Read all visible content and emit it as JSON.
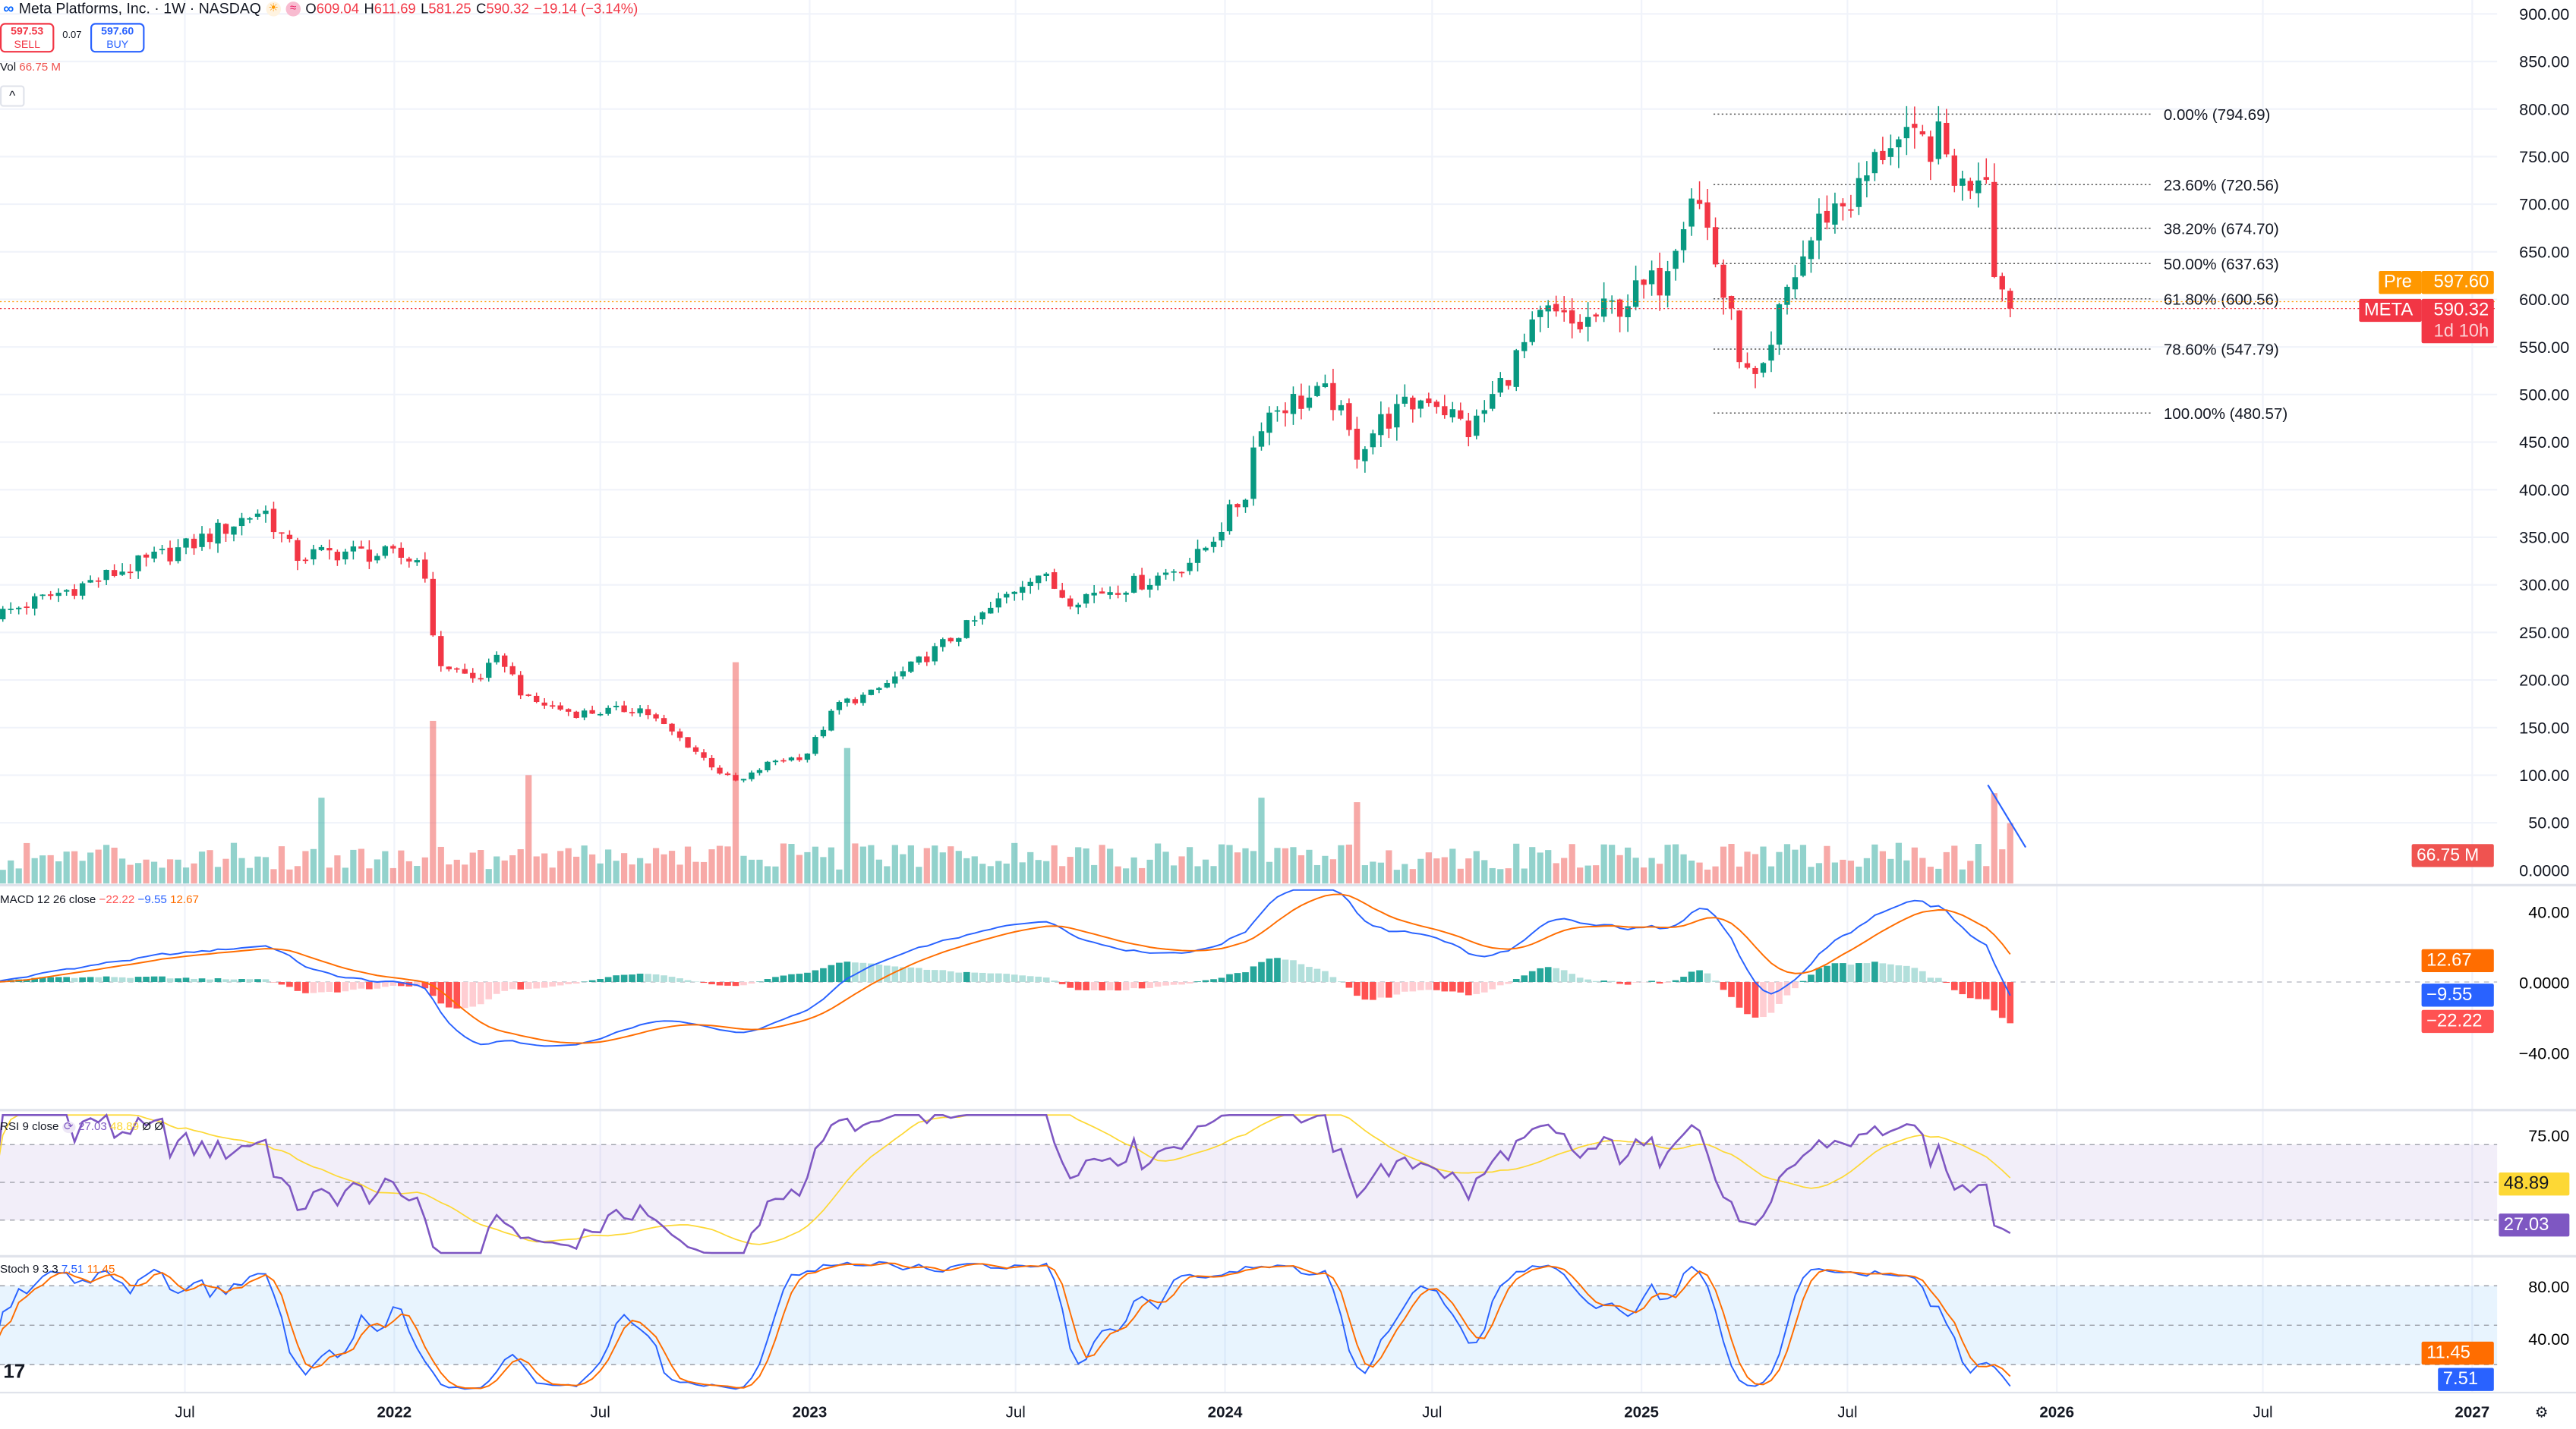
{
  "header": {
    "symbol_title": "Meta Platforms, Inc. · 1W · NASDAQ",
    "ohlc": {
      "o_label": "O",
      "o": "609.04",
      "h_label": "H",
      "h": "611.69",
      "l_label": "L",
      "l": "581.25",
      "c_label": "C",
      "c": "590.32",
      "change": "−19.14 (−3.14%)"
    },
    "sell_price": "597.53",
    "sell_label": "SELL",
    "spread": "0.07",
    "buy_price": "597.60",
    "buy_label": "BUY",
    "vol_label": "Vol",
    "vol_value": "66.75 M",
    "collapse_icon": "^"
  },
  "price_axis": [
    "900.00",
    "850.00",
    "800.00",
    "750.00",
    "700.00",
    "650.00",
    "600.00",
    "550.00",
    "500.00",
    "450.00",
    "400.00",
    "350.00",
    "300.00",
    "250.00",
    "200.00",
    "150.00",
    "100.00",
    "50.00",
    "0.0000"
  ],
  "price_axis_values": [
    900,
    850,
    800,
    750,
    700,
    650,
    600,
    550,
    500,
    450,
    400,
    350,
    300,
    250,
    200,
    150,
    100,
    50,
    0
  ],
  "tags": {
    "pre_label": "Pre",
    "pre_price": "597.60",
    "sym_label": "META",
    "last_price": "590.32",
    "countdown": "1d 10h",
    "volume": "66.75 M",
    "macd_signal": "12.67",
    "macd_line": "−9.55",
    "macd_hist": "−22.22",
    "rsi_ma": "48.89",
    "rsi": "27.03",
    "stoch_d": "11.45",
    "stoch_k": "7.51"
  },
  "fib": [
    {
      "label": "0.00% (794.69)",
      "price": 794.69
    },
    {
      "label": "23.60% (720.56)",
      "price": 720.56
    },
    {
      "label": "38.20% (674.70)",
      "price": 674.7
    },
    {
      "label": "50.00% (637.63)",
      "price": 637.63
    },
    {
      "label": "61.80% (600.56)",
      "price": 600.56
    },
    {
      "label": "78.60% (547.79)",
      "price": 547.79
    },
    {
      "label": "100.00% (480.57)",
      "price": 480.57
    }
  ],
  "macd": {
    "title": "MACD 12 26 close",
    "hist": "−22.22",
    "macd": "−9.55",
    "signal": "12.67",
    "axis": [
      "40.00",
      "0.0000",
      "−40.00"
    ]
  },
  "rsi": {
    "title": "RSI 9 close",
    "value": "27.03",
    "ma": "48.89",
    "extra1": "Ø",
    "extra2": "Ø",
    "axis": [
      "75.00"
    ]
  },
  "stoch": {
    "title": "Stoch 9 3 3",
    "k": "7.51",
    "d": "11.45",
    "axis": [
      "80.00",
      "40.00"
    ]
  },
  "time_axis": [
    {
      "label": "Jul",
      "date": "2021-07-01"
    },
    {
      "label": "2022",
      "date": "2022-01-01"
    },
    {
      "label": "Jul",
      "date": "2022-07-01"
    },
    {
      "label": "2023",
      "date": "2023-01-01"
    },
    {
      "label": "Jul",
      "date": "2023-07-01"
    },
    {
      "label": "2024",
      "date": "2024-01-01"
    },
    {
      "label": "Jul",
      "date": "2024-07-01"
    },
    {
      "label": "2025",
      "date": "2025-01-01"
    },
    {
      "label": "Jul",
      "date": "2025-07-01"
    },
    {
      "label": "2026",
      "date": "2026-01-01"
    },
    {
      "label": "Jul",
      "date": "2026-07-01"
    },
    {
      "label": "2027",
      "date": "2027-01-01"
    }
  ],
  "colors": {
    "up": "#089981",
    "down": "#f23645",
    "macd": "#2962ff",
    "signal": "#ff6d00",
    "rsi": "#7e57c2",
    "rsi_ma": "#fdd835",
    "stoch_k": "#2962ff",
    "stoch_d": "#ff6d00",
    "pre": "#ff9800"
  },
  "chart_data": {
    "type": "candlestick",
    "title": "Meta Platforms, Inc. · 1W · NASDAQ",
    "ylim": [
      0,
      900
    ],
    "close_anchors": [
      [
        "2021-01-15",
        268
      ],
      [
        "2021-04-02",
        300
      ],
      [
        "2021-07-02",
        340
      ],
      [
        "2021-09-08",
        380
      ],
      [
        "2021-10-06",
        330
      ],
      [
        "2021-11-19",
        335
      ],
      [
        "2022-01-01",
        330
      ],
      [
        "2022-01-27",
        325
      ],
      [
        "2022-02-06",
        220
      ],
      [
        "2022-03-14",
        200
      ],
      [
        "2022-04-05",
        225
      ],
      [
        "2022-04-26",
        180
      ],
      [
        "2022-06-09",
        165
      ],
      [
        "2022-08-06",
        170
      ],
      [
        "2022-09-18",
        130
      ],
      [
        "2022-10-17",
        100
      ],
      [
        "2022-10-31",
        92
      ],
      [
        "2022-11-29",
        115
      ],
      [
        "2022-12-28",
        120
      ],
      [
        "2023-01-26",
        175
      ],
      [
        "2023-02-24",
        185
      ],
      [
        "2023-04-08",
        220
      ],
      [
        "2023-06-05",
        270
      ],
      [
        "2023-07-18",
        315
      ],
      [
        "2023-08-16",
        285
      ],
      [
        "2023-10-27",
        305
      ],
      [
        "2023-12-09",
        330
      ],
      [
        "2024-01-21",
        400
      ],
      [
        "2024-01-29",
        470
      ],
      [
        "2024-02-19",
        490
      ],
      [
        "2024-04-03",
        500
      ],
      [
        "2024-04-25",
        440
      ],
      [
        "2024-05-16",
        470
      ],
      [
        "2024-06-29",
        500
      ],
      [
        "2024-08-04",
        460
      ],
      [
        "2024-09-09",
        530
      ],
      [
        "2024-10-08",
        585
      ],
      [
        "2024-11-05",
        570
      ],
      [
        "2024-12-19",
        600
      ],
      [
        "2025-01-17",
        620
      ],
      [
        "2025-02-15",
        720
      ],
      [
        "2025-03-01",
        670
      ],
      [
        "2025-03-15",
        600
      ],
      [
        "2025-04-06",
        510
      ],
      [
        "2025-04-21",
        520
      ],
      [
        "2025-05-05",
        600
      ],
      [
        "2025-06-10",
        690
      ],
      [
        "2025-07-09",
        710
      ],
      [
        "2025-08-07",
        770
      ],
      [
        "2025-08-21",
        760
      ],
      [
        "2025-09-19",
        765
      ],
      [
        "2025-10-11",
        715
      ],
      [
        "2025-10-30",
        750
      ],
      [
        "2025-11-07",
        640
      ],
      [
        "2025-11-14",
        610
      ],
      [
        "2025-11-21",
        590.32
      ]
    ],
    "last_candle": {
      "date": "2025-11-21",
      "open": 609.04,
      "high": 611.69,
      "low": 581.25,
      "close": 590.32,
      "volume_m": 66.75
    },
    "volume_spikes_m": [
      [
        "2022-02-04",
        180
      ],
      [
        "2022-10-28",
        245
      ],
      [
        "2023-02-03",
        150
      ],
      [
        "2021-10-29",
        95
      ],
      [
        "2022-04-29",
        120
      ],
      [
        "2024-02-02",
        95
      ],
      [
        "2024-04-26",
        90
      ],
      [
        "2025-11-07",
        100
      ]
    ]
  }
}
